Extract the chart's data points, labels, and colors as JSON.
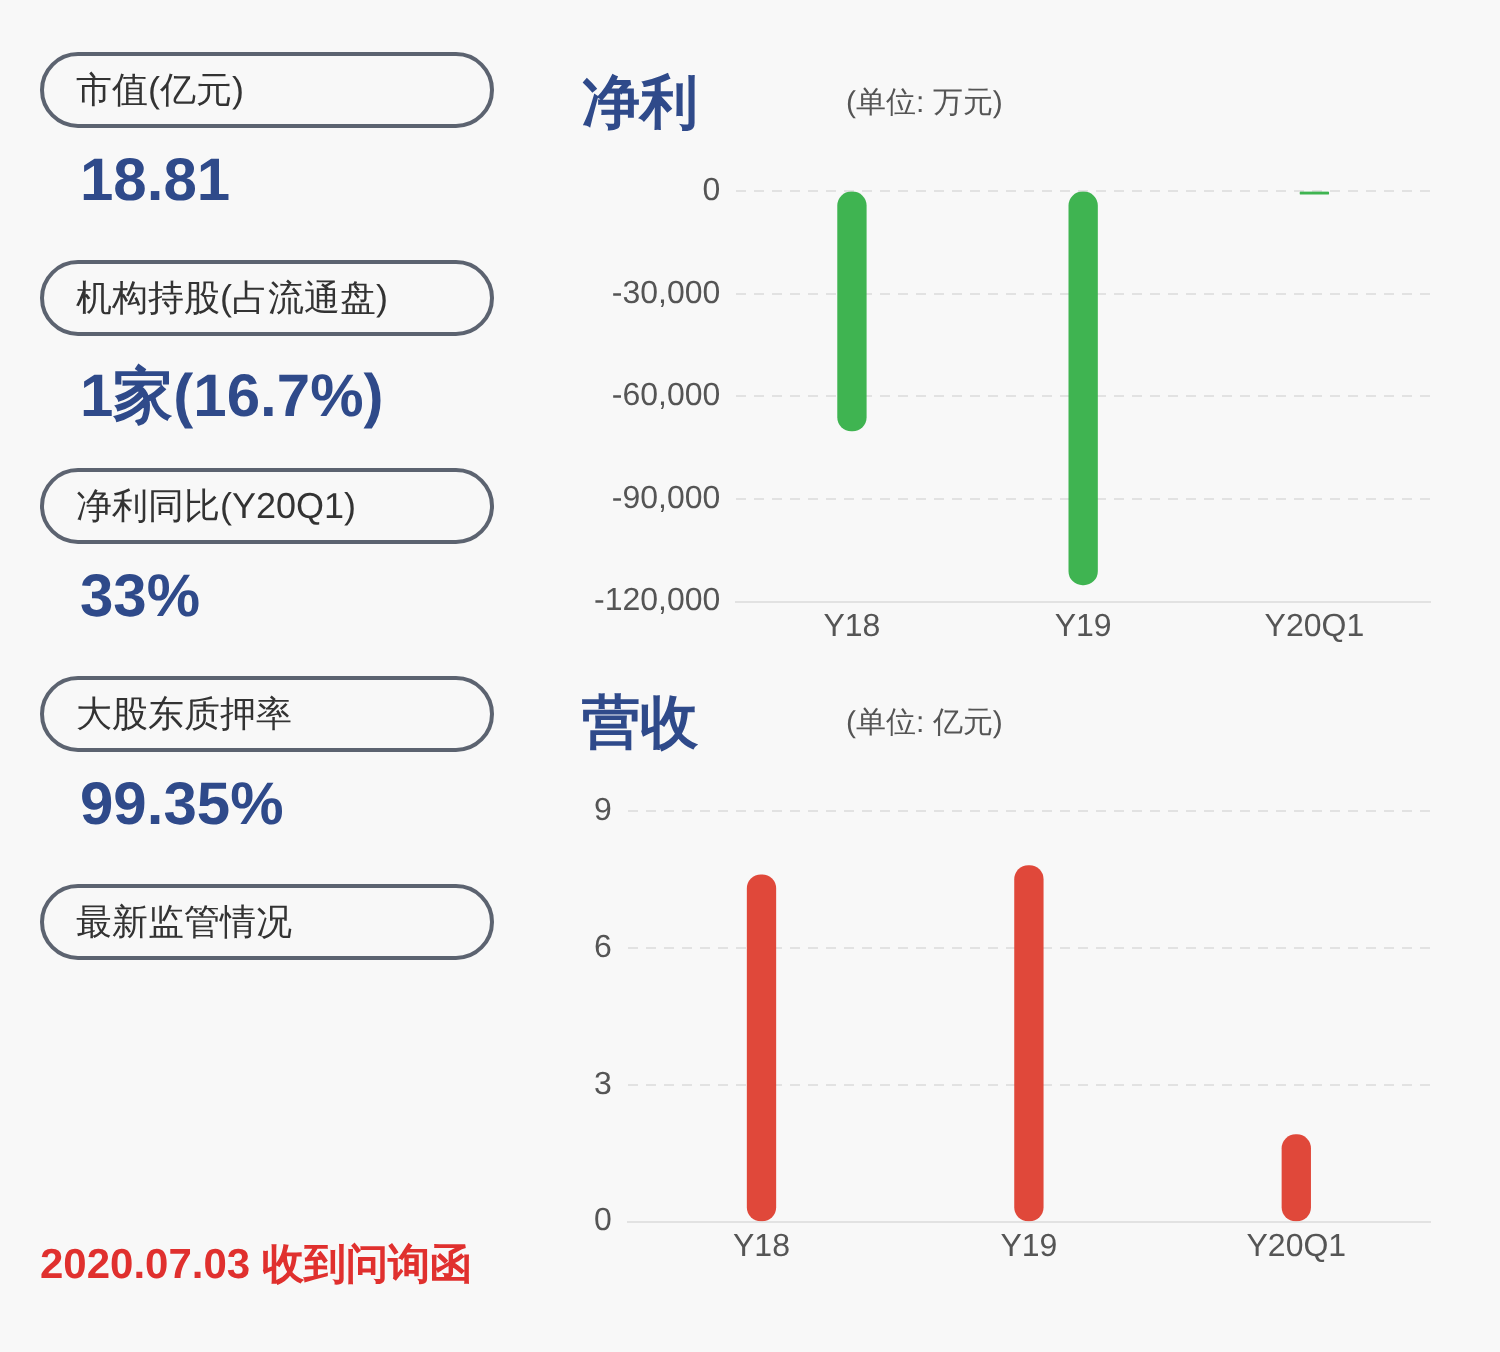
{
  "chart_data": [
    {
      "type": "other",
      "annotations": [
        "市值(亿元)",
        "18.81",
        "机构持股(占流通盘)",
        "1家(16.7%)",
        "净利同比(Y20Q1)",
        "33%",
        "大股东质押率",
        "99.35%",
        "最新监管情况",
        "2020.07.03 收到问询函"
      ]
    },
    {
      "type": "bar",
      "title": "净利",
      "subtitle": "(单位: 万元)",
      "categories": [
        "Y18",
        "Y19",
        "Y20Q1"
      ],
      "values": [
        -70000,
        -115000,
        -800
      ],
      "color": "#3fb451",
      "ylim": [
        -120000,
        0
      ],
      "yticks": [
        {
          "value": -120000,
          "label": "-120,000"
        },
        {
          "value": -90000,
          "label": "-90,000"
        },
        {
          "value": -60000,
          "label": "-60,000"
        },
        {
          "value": -30000,
          "label": "-30,000"
        },
        0
      ],
      "grid": "y"
    },
    {
      "type": "bar",
      "title": "营收",
      "subtitle": "(单位: 亿元)",
      "categories": [
        "Y18",
        "Y19",
        "Y20Q1"
      ],
      "values": [
        7.6,
        7.8,
        1.9
      ],
      "color": "#e0483a",
      "ylim": [
        0,
        9
      ],
      "yticks": [
        0,
        3,
        6,
        9
      ],
      "grid": "y"
    }
  ]
}
